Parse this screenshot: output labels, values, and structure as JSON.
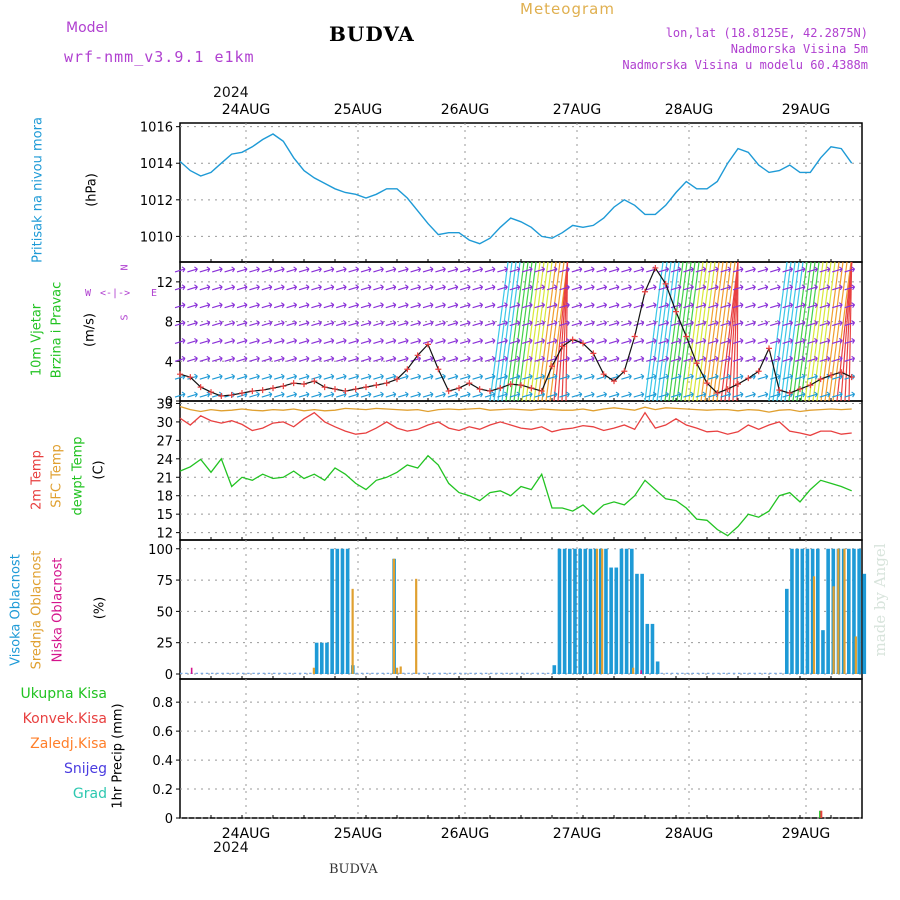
{
  "header": {
    "model_label": "Model",
    "model_name": "wrf-nmm_v3.9.1 e1km",
    "station_title": "BUDVA",
    "meteogram_label": "Meteogram",
    "lonlat": "lon,lat (18.8125E, 42.2875N)",
    "elevation": "Nadmorska Visina 5m",
    "model_elevation": "Nadmorska Visina u modelu 60.4388m",
    "credit": "made by Angel",
    "footer_station": "BUDVA"
  },
  "time_axis": {
    "top_year": "2024",
    "bottom_year": "2024",
    "days": [
      "24AUG",
      "25AUG",
      "26AUG",
      "27AUG",
      "28AUG",
      "29AUG"
    ]
  },
  "compass": {
    "north": "N",
    "south": "S",
    "east": "E",
    "west": "W"
  },
  "colors": {
    "pressure": "#1e9ad6",
    "temp2m": "#e84040",
    "sfc_temp": "#e0a030",
    "dewpoint": "#22c322",
    "high_cloud": "#1e9ad6",
    "mid_cloud": "#e0a030",
    "low_cloud": "#d4148c",
    "total_precip": "#22c322",
    "conv_precip": "#e84040",
    "frozen_precip": "#ff7f2a",
    "snow": "#4a3ce0",
    "graupel": "#2ec8b0",
    "wind_label": "#22c322",
    "compass": "#b040d0"
  },
  "chart_data": [
    {
      "id": "pressure",
      "type": "line",
      "ylabel_left": "Pritisak na nivou mora",
      "ylabel": "(hPa)",
      "ylim": [
        1008.6,
        1016.2
      ],
      "yticks": [
        1010,
        1012,
        1014,
        1016
      ],
      "x_hours_start": 0,
      "step_hours": 3,
      "series": [
        {
          "values": [
            1014.1,
            1013.6,
            1013.3,
            1013.5,
            1014.0,
            1014.5,
            1014.6,
            1014.9,
            1015.3,
            1015.6,
            1015.2,
            1014.3,
            1013.6,
            1013.2,
            1012.9,
            1012.6,
            1012.4,
            1012.3,
            1012.1,
            1012.3,
            1012.6,
            1012.6,
            1012.1,
            1011.4,
            1010.7,
            1010.1,
            1010.2,
            1010.2,
            1009.8,
            1009.6,
            1009.9,
            1010.5,
            1011.0,
            1010.8,
            1010.5,
            1010.0,
            1009.9,
            1010.2,
            1010.6,
            1010.5,
            1010.6,
            1011.0,
            1011.6,
            1012.0,
            1011.7,
            1011.2,
            1011.2,
            1011.7,
            1012.4,
            1013.0,
            1012.6,
            1012.6,
            1013.0,
            1014.0,
            1014.8,
            1014.6,
            1013.9,
            1013.5,
            1013.6,
            1013.9,
            1013.5,
            1013.5,
            1014.3,
            1014.9,
            1014.8,
            1014.0
          ]
        }
      ]
    },
    {
      "id": "wind",
      "type": "line",
      "ylabel_left1": "10m Vjetar",
      "ylabel_left2": "Brzina i Pravac",
      "ylabel": "(m/s)",
      "ylim": [
        0,
        14
      ],
      "yticks": [
        0,
        4,
        8,
        12
      ],
      "x_hours_start": 0,
      "step_hours": 3,
      "series": [
        {
          "values": [
            2.7,
            2.4,
            1.4,
            0.9,
            0.5,
            0.6,
            0.8,
            1.0,
            1.1,
            1.3,
            1.5,
            1.8,
            1.7,
            2.0,
            1.4,
            1.2,
            1.0,
            1.2,
            1.4,
            1.6,
            1.8,
            2.2,
            3.2,
            4.6,
            5.7,
            3.2,
            1.0,
            1.3,
            1.8,
            1.2,
            1.0,
            1.3,
            1.7,
            1.6,
            1.3,
            1.0,
            3.5,
            5.5,
            6.2,
            5.8,
            4.8,
            2.7,
            2.0,
            3.0,
            6.5,
            11.0,
            13.4,
            11.8,
            9.0,
            6.5,
            3.8,
            1.8,
            0.8,
            1.2,
            1.7,
            2.3,
            3.0,
            5.3,
            1.1,
            0.8,
            1.2,
            1.6,
            2.2,
            2.6,
            2.9,
            2.4
          ]
        }
      ],
      "barbs_rows": [
        0.6,
        2.4,
        4.2,
        6.0,
        7.8,
        9.6,
        11.4,
        13.2
      ],
      "front_zones_hours": [
        [
          60,
          75
        ],
        [
          90,
          108
        ],
        [
          114,
          130
        ]
      ]
    },
    {
      "id": "temperature",
      "type": "line",
      "ylabel_left1": "2m Temp",
      "ylabel_left2": "SFC Temp",
      "ylabel_left3": "dewpt Temp",
      "ylabel": "(C)",
      "ylim": [
        10.8,
        33.4
      ],
      "yticks": [
        12,
        15,
        18,
        21,
        24,
        27,
        30,
        33
      ],
      "x_hours_start": 0,
      "step_hours": 3,
      "series": [
        {
          "name": "2m Temp",
          "values": [
            30.6,
            29.5,
            31.0,
            30.2,
            29.8,
            30.2,
            29.6,
            28.6,
            29.0,
            29.8,
            30.0,
            29.2,
            30.5,
            31.5,
            30.0,
            29.2,
            28.5,
            28.0,
            28.2,
            29.0,
            30.0,
            29.0,
            28.5,
            28.8,
            29.5,
            30.0,
            29.0,
            28.6,
            29.2,
            28.8,
            29.5,
            30.0,
            29.5,
            29.0,
            28.8,
            29.2,
            28.4,
            28.8,
            29.0,
            29.4,
            29.2,
            28.6,
            29.0,
            29.5,
            28.8,
            31.5,
            29.0,
            29.5,
            30.5,
            29.5,
            29.0,
            28.4,
            28.5,
            28.0,
            28.4,
            29.5,
            28.8,
            29.5,
            30.0,
            28.5,
            28.2,
            27.8,
            28.5,
            28.5,
            28.0,
            28.2
          ]
        },
        {
          "name": "SFC Temp",
          "values": [
            32.5,
            32.0,
            31.7,
            32.0,
            31.8,
            31.9,
            32.1,
            31.9,
            31.8,
            32.0,
            31.9,
            32.1,
            31.8,
            32.0,
            31.8,
            31.9,
            32.2,
            32.1,
            32.0,
            32.2,
            32.1,
            32.0,
            31.9,
            32.0,
            31.7,
            32.0,
            32.1,
            32.0,
            32.1,
            32.2,
            31.9,
            32.0,
            32.1,
            32.0,
            31.9,
            32.1,
            32.0,
            31.9,
            31.9,
            32.1,
            31.8,
            32.1,
            32.3,
            32.1,
            31.9,
            32.4,
            32.0,
            32.3,
            32.2,
            32.1,
            32.0,
            31.9,
            32.0,
            32.0,
            31.8,
            32.0,
            31.9,
            31.6,
            31.9,
            32.0,
            31.7,
            31.9,
            32.0,
            32.1,
            32.0,
            32.1
          ]
        },
        {
          "name": "dewpt Temp",
          "values": [
            22.0,
            22.7,
            23.9,
            21.8,
            24.0,
            19.5,
            21.0,
            20.5,
            21.5,
            20.8,
            21.0,
            22.0,
            20.8,
            21.5,
            20.5,
            22.5,
            21.5,
            20.0,
            19.0,
            20.5,
            21.0,
            21.8,
            23.0,
            22.5,
            24.5,
            23.0,
            20.0,
            18.5,
            18.0,
            17.2,
            18.5,
            18.8,
            18.0,
            19.5,
            19.0,
            21.5,
            16.0,
            16.0,
            15.5,
            16.5,
            15.0,
            16.5,
            17.0,
            16.5,
            18.0,
            20.5,
            19.0,
            17.5,
            17.2,
            16.0,
            14.2,
            14.0,
            12.5,
            11.5,
            13.0,
            15.0,
            14.5,
            15.5,
            18.0,
            18.5,
            17.0,
            19.0,
            20.5,
            20.0,
            19.5,
            18.8
          ]
        }
      ]
    },
    {
      "id": "clouds",
      "type": "bar",
      "ylabel_left1": "Visoka Oblacnost",
      "ylabel_left2": "Srednja Oblacnost",
      "ylabel_left3": "Niska Oblacnost",
      "ylabel": "(%)",
      "ylim": [
        -4,
        107
      ],
      "yticks": [
        0,
        25,
        50,
        75,
        100
      ],
      "high_cloud_blocks": [
        {
          "from_hour": 26,
          "to_hour": 29,
          "value": 25
        },
        {
          "from_hour": 29,
          "to_hour": 33,
          "value": 100
        },
        {
          "from_hour": 33,
          "to_hour": 34,
          "value": 7
        },
        {
          "from_hour": 41,
          "to_hour": 42,
          "value": 92
        },
        {
          "from_hour": 72,
          "to_hour": 73,
          "value": 7
        },
        {
          "from_hour": 73,
          "to_hour": 83,
          "value": 100
        },
        {
          "from_hour": 83,
          "to_hour": 85,
          "value": 85
        },
        {
          "from_hour": 85,
          "to_hour": 88,
          "value": 100
        },
        {
          "from_hour": 88,
          "to_hour": 90,
          "value": 80
        },
        {
          "from_hour": 90,
          "to_hour": 92,
          "value": 40
        },
        {
          "from_hour": 92,
          "to_hour": 93,
          "value": 10
        },
        {
          "from_hour": 117,
          "to_hour": 118,
          "value": 68
        },
        {
          "from_hour": 118,
          "to_hour": 124,
          "value": 100
        },
        {
          "from_hour": 124,
          "to_hour": 125,
          "value": 35
        },
        {
          "from_hour": 125,
          "to_hour": 132,
          "value": 100
        },
        {
          "from_hour": 132,
          "to_hour": 133,
          "value": 80
        }
      ],
      "mid_cloud_bars": [
        {
          "hour": 25.7,
          "value": 5
        },
        {
          "hour": 33.2,
          "value": 68
        },
        {
          "hour": 41.2,
          "value": 92
        },
        {
          "hour": 41.8,
          "value": 5
        },
        {
          "hour": 42.5,
          "value": 6
        },
        {
          "hour": 45.5,
          "value": 76
        },
        {
          "hour": 80.5,
          "value": 100
        },
        {
          "hour": 81.5,
          "value": 100
        },
        {
          "hour": 87.5,
          "value": 5
        },
        {
          "hour": 122.5,
          "value": 78
        },
        {
          "hour": 126.3,
          "value": 70
        },
        {
          "hour": 127.2,
          "value": 100
        },
        {
          "hour": 128.4,
          "value": 100
        },
        {
          "hour": 130.6,
          "value": 30
        }
      ],
      "low_cloud_bars": [
        {
          "hour": 2.1,
          "value": 5
        },
        {
          "hour": 89.1,
          "value": 3
        }
      ]
    },
    {
      "id": "precip",
      "type": "bar",
      "legend": [
        "Ukupna Kisa",
        "Konvek.Kisa",
        "Zaledj.Kisa",
        "Snijeg",
        "Grad"
      ],
      "ylabel": "1hr Precip (mm)",
      "ylim": [
        0,
        0.96
      ],
      "yticks": [
        0,
        0.2,
        0.4,
        0.6,
        0.8
      ],
      "bars": [
        {
          "hour": 123.7,
          "total": 0.05,
          "conv": 0.05
        }
      ]
    }
  ]
}
